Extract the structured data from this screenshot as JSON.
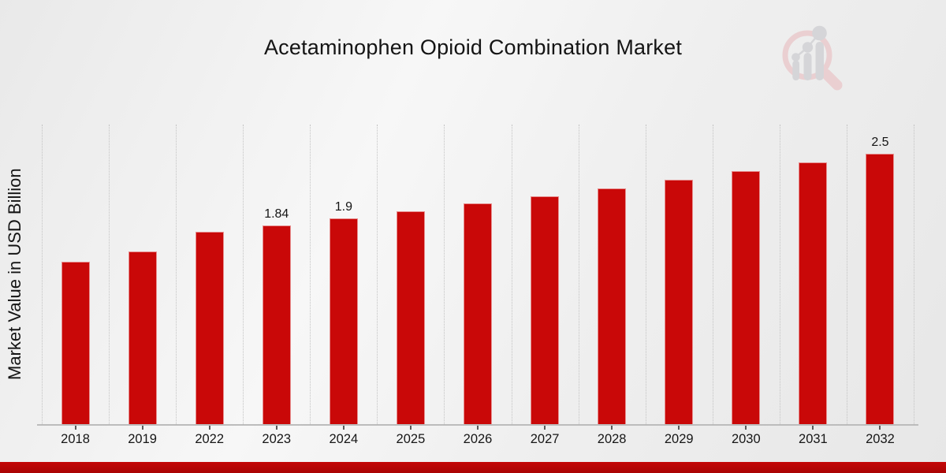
{
  "page": {
    "title": "Acetaminophen Opioid Combination Market",
    "ylabel": "Market Value in USD Billion",
    "logo_name": "market-research-future-watermark"
  },
  "colors": {
    "bar": "#c90808",
    "accent_strip": "#b40505",
    "gridline": "#c3c3c3",
    "axis_line": "#bcbcbc",
    "text": "#141414",
    "logo_ring": "#eacfd1",
    "logo_gray": "#d5d5d8"
  },
  "chart_data": {
    "type": "bar",
    "title": "Acetaminophen Opioid Combination Market",
    "xlabel": "",
    "ylabel": "Market Value in USD Billion",
    "unit": "USD Billion",
    "categories": [
      "2018",
      "2019",
      "2022",
      "2023",
      "2024",
      "2025",
      "2026",
      "2027",
      "2028",
      "2029",
      "2030",
      "2031",
      "2032"
    ],
    "values": [
      1.5,
      1.6,
      1.78,
      1.84,
      1.9,
      1.97,
      2.04,
      2.11,
      2.18,
      2.26,
      2.34,
      2.42,
      2.5
    ],
    "bar_labels": [
      "",
      "",
      "",
      "1.84",
      "1.9",
      "",
      "",
      "",
      "",
      "",
      "",
      "",
      "2.5"
    ],
    "ylim": [
      0,
      2.77
    ],
    "y_ticks_visible": false,
    "grid": "vertical-dotted-at-category-boundaries",
    "legend": "none",
    "series_name": "Market Value"
  }
}
